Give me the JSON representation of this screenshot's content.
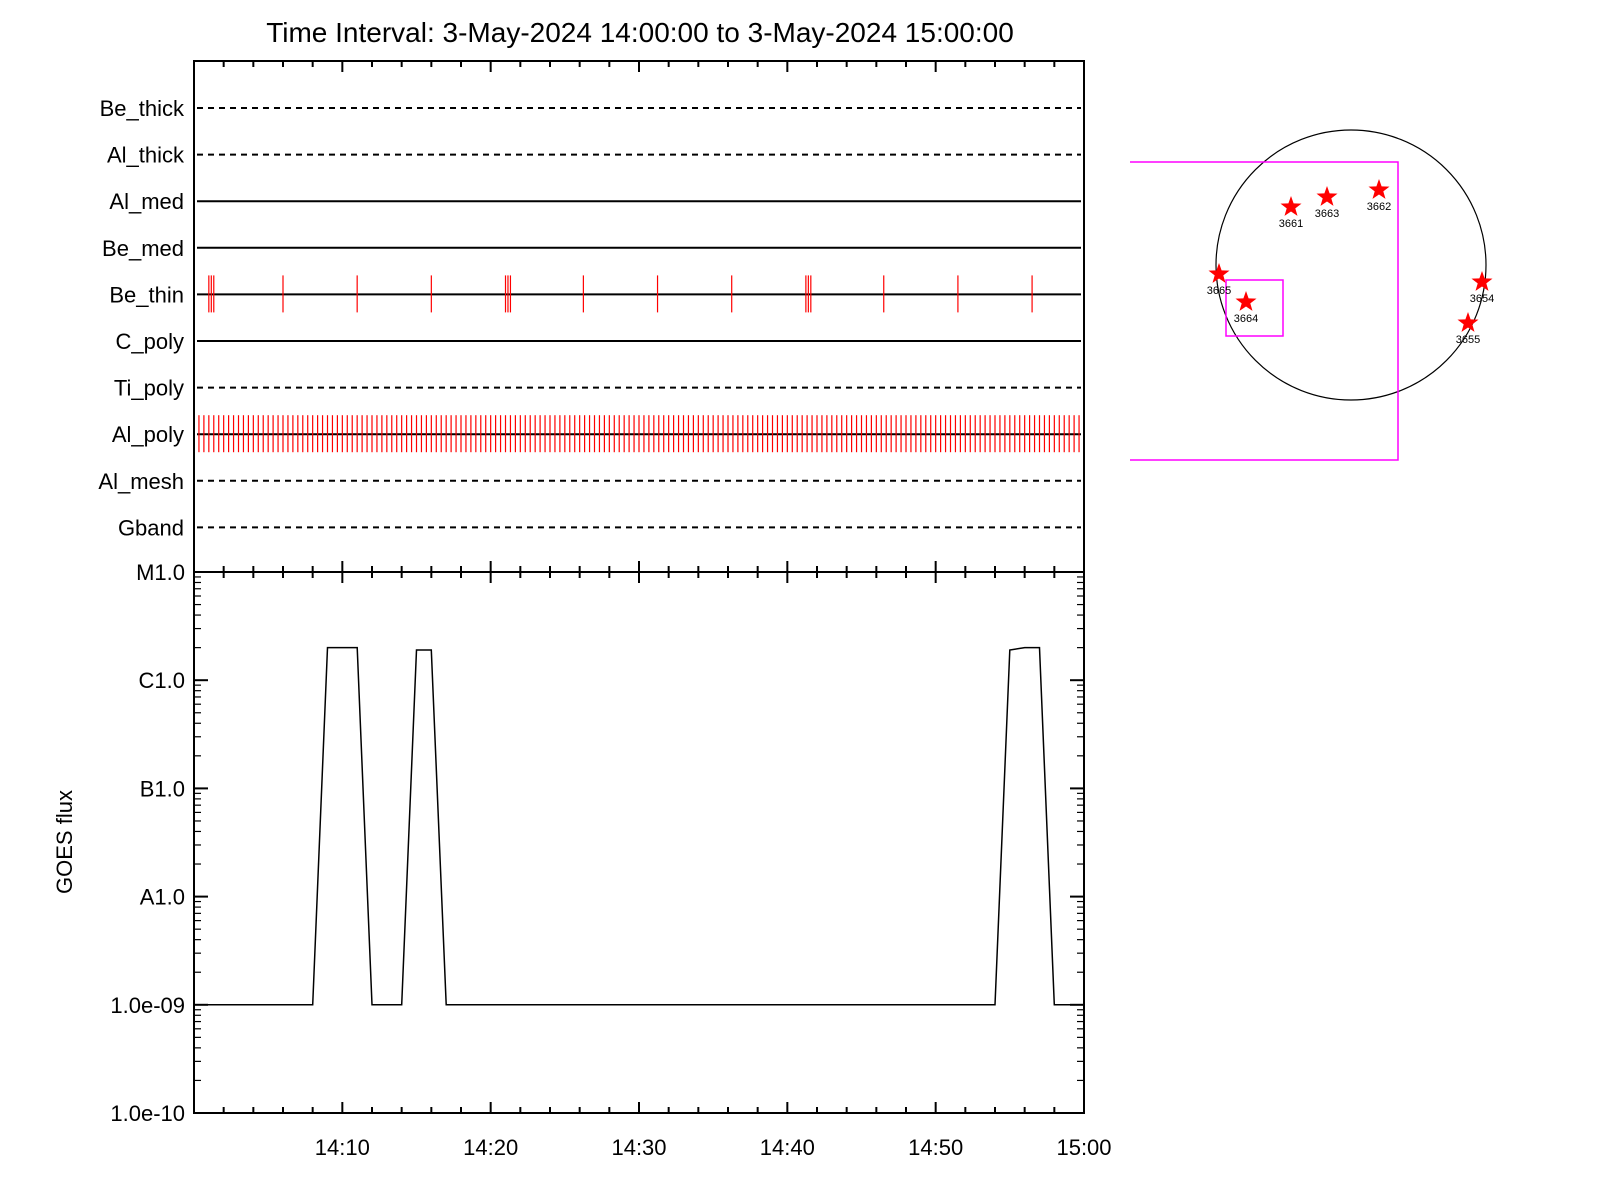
{
  "title": "Time Interval:  3-May-2024 14:00:00 to  3-May-2024 15:00:00",
  "colors": {
    "axis": "#000000",
    "events": "#ff0000",
    "box": "#ff00ff",
    "star": "#ff0000"
  },
  "chart_data": [
    {
      "type": "event-timeline",
      "x_range": [
        "14:00",
        "15:00"
      ],
      "xtick_labels": [
        "14:10",
        "14:20",
        "14:30",
        "14:40",
        "14:50",
        "15:00"
      ],
      "channels": [
        {
          "name": "Be_thick",
          "line": "dashed",
          "events": []
        },
        {
          "name": "Al_thick",
          "line": "dashed",
          "events": []
        },
        {
          "name": "Al_med",
          "line": "solid",
          "events": []
        },
        {
          "name": "Be_med",
          "line": "solid",
          "events": []
        },
        {
          "name": "Be_thin",
          "line": "solid",
          "events": [
            "14:01:00",
            "14:01:10",
            "14:01:20",
            "14:06:00",
            "14:11:00",
            "14:16:00",
            "14:21:00",
            "14:21:10",
            "14:21:20",
            "14:26:15",
            "14:31:15",
            "14:36:15",
            "14:41:15",
            "14:41:25",
            "14:41:35",
            "14:46:30",
            "14:51:30",
            "14:56:30"
          ]
        },
        {
          "name": "C_poly",
          "line": "solid",
          "events": []
        },
        {
          "name": "Ti_poly",
          "line": "dashed",
          "events": []
        },
        {
          "name": "Al_poly",
          "line": "solid",
          "events": [],
          "event_interval_s": 20,
          "event_start": "14:00:20",
          "event_end": "15:00:00"
        },
        {
          "name": "Al_mesh",
          "line": "dashed",
          "events": []
        },
        {
          "name": "Gband",
          "line": "dashed",
          "events": []
        }
      ]
    },
    {
      "type": "line",
      "ylabel": "GOES flux",
      "yscale": "log",
      "ylim": [
        1e-10,
        1e-05
      ],
      "ytick_labels": [
        {
          "label": "1.0e-10",
          "value": 1e-10
        },
        {
          "label": "1.0e-09",
          "value": 1e-09
        },
        {
          "label": "A1.0",
          "value": 1e-08
        },
        {
          "label": "B1.0",
          "value": 1e-07
        },
        {
          "label": "C1.0",
          "value": 1e-06
        },
        {
          "label": "M1.0",
          "value": 1e-05
        }
      ],
      "x_range": [
        "14:00",
        "15:00"
      ],
      "xtick_labels": [
        "14:10",
        "14:20",
        "14:30",
        "14:40",
        "14:50",
        "15:00"
      ],
      "series": [
        {
          "x": [
            "14:00:00",
            "14:08:00",
            "14:09:00",
            "14:10:00",
            "14:11:00",
            "14:12:00",
            "14:14:00",
            "14:15:00",
            "14:16:00",
            "14:17:00",
            "14:54:00",
            "14:55:00",
            "14:56:00",
            "14:57:00",
            "14:58:00",
            "15:00:00"
          ],
          "values": [
            1e-09,
            1e-09,
            2e-06,
            2e-06,
            2e-06,
            1e-09,
            1e-09,
            1.9e-06,
            1.9e-06,
            1e-09,
            1e-09,
            1.9e-06,
            2e-06,
            2e-06,
            1e-09,
            1e-09
          ]
        }
      ]
    },
    {
      "type": "solar-disk-map",
      "regions": [
        {
          "label": "3661"
        },
        {
          "label": "3663"
        },
        {
          "label": "3662"
        },
        {
          "label": "3665"
        },
        {
          "label": "3664"
        },
        {
          "label": "3654"
        },
        {
          "label": "3655"
        }
      ]
    }
  ]
}
